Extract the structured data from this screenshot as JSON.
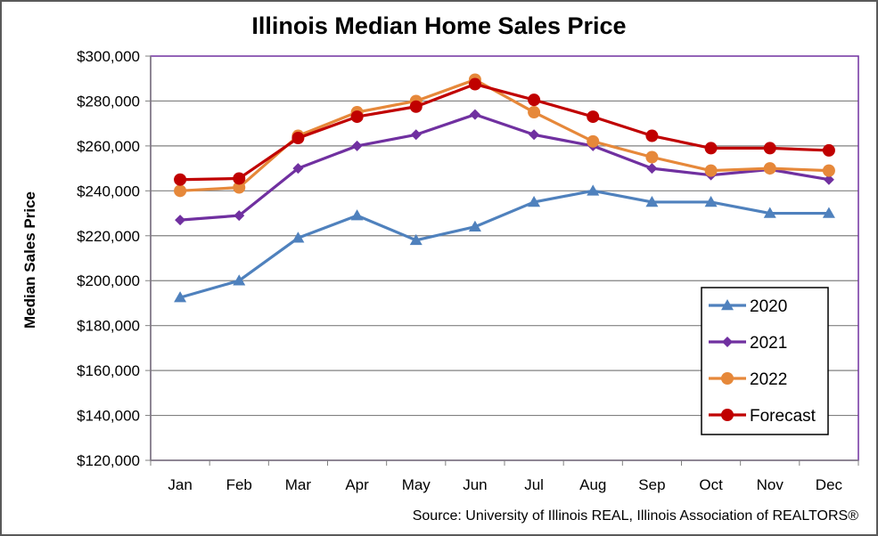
{
  "chart_data": {
    "type": "line",
    "title": "Illinois Median Home Sales Price",
    "xlabel": "",
    "ylabel": "Median  Sales  Price",
    "categories": [
      "Jan",
      "Feb",
      "Mar",
      "Apr",
      "May",
      "Jun",
      "Jul",
      "Aug",
      "Sep",
      "Oct",
      "Nov",
      "Dec"
    ],
    "ylim": [
      120000,
      300000
    ],
    "yticks": [
      120000,
      140000,
      160000,
      180000,
      200000,
      220000,
      240000,
      260000,
      280000,
      300000
    ],
    "ytick_labels": [
      "$120,000",
      "$140,000",
      "$160,000",
      "$180,000",
      "$200,000",
      "$220,000",
      "$240,000",
      "$260,000",
      "$280,000",
      "$300,000"
    ],
    "grid": true,
    "legend_position": "bottom-right",
    "series": [
      {
        "name": "2020",
        "color": "#4f81bd",
        "marker": "triangle",
        "values": [
          192500,
          200000,
          219000,
          229000,
          218000,
          224000,
          235000,
          240000,
          235000,
          235000,
          230000,
          230000
        ]
      },
      {
        "name": "2021",
        "color": "#7030a0",
        "marker": "diamond",
        "values": [
          227000,
          229000,
          250000,
          260000,
          265000,
          274000,
          265000,
          260000,
          250000,
          247000,
          249500,
          245000
        ]
      },
      {
        "name": "2022",
        "color": "#e6883a",
        "marker": "circle",
        "values": [
          240000,
          241500,
          264500,
          275000,
          280000,
          289500,
          275000,
          262000,
          255000,
          249000,
          250000,
          249000
        ]
      },
      {
        "name": "Forecast",
        "color": "#c00000",
        "marker": "circle",
        "values": [
          245000,
          245500,
          263500,
          273000,
          277500,
          287500,
          280500,
          273000,
          264500,
          259000,
          259000,
          258000
        ]
      }
    ],
    "source": "Source: University of Illinois REAL, Illinois Association of REALTORS®"
  }
}
